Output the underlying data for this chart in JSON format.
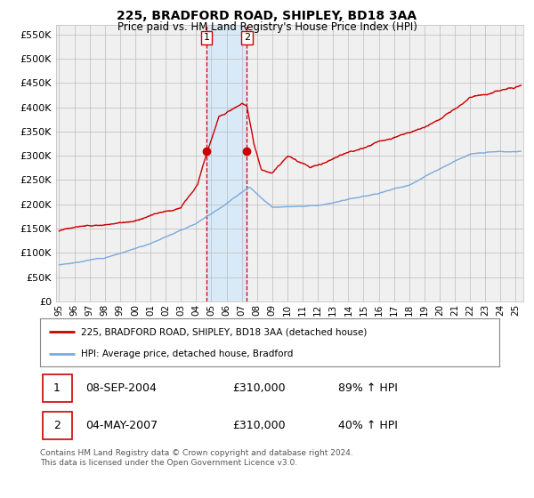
{
  "title": "225, BRADFORD ROAD, SHIPLEY, BD18 3AA",
  "subtitle": "Price paid vs. HM Land Registry's House Price Index (HPI)",
  "legend_line1": "225, BRADFORD ROAD, SHIPLEY, BD18 3AA (detached house)",
  "legend_line2": "HPI: Average price, detached house, Bradford",
  "sale1_date": "08-SEP-2004",
  "sale1_price": "£310,000",
  "sale1_hpi": "89% ↑ HPI",
  "sale2_date": "04-MAY-2007",
  "sale2_price": "£310,000",
  "sale2_hpi": "40% ↑ HPI",
  "footnote": "Contains HM Land Registry data © Crown copyright and database right 2024.\nThis data is licensed under the Open Government Licence v3.0.",
  "red_color": "#cc0000",
  "blue_color": "#7aaadd",
  "highlight_color": "#d8eaf8",
  "grid_color": "#bbbbbb",
  "bg_color": "#f0f0f0",
  "sale1_x": 2004.69,
  "sale2_x": 2007.34,
  "ylim_max": 570000,
  "xlim_start": 1994.8,
  "xlim_end": 2025.5
}
